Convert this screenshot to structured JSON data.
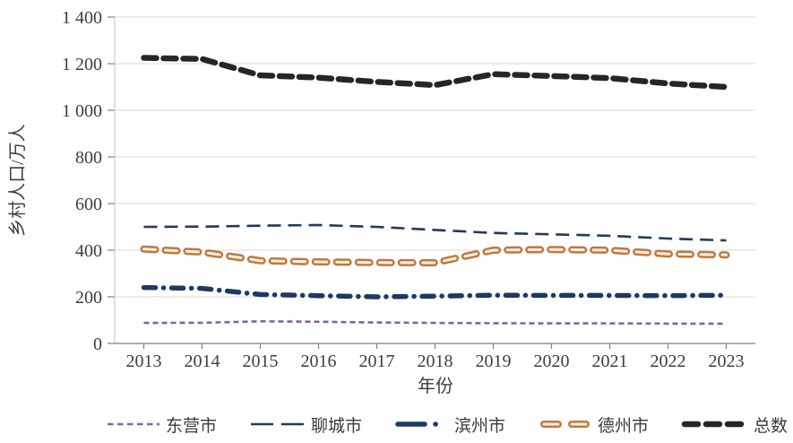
{
  "chart_data": {
    "type": "line",
    "title": "",
    "xlabel": "年份",
    "ylabel": "乡村人口/万人",
    "x_categories": [
      "2013",
      "2014",
      "2015",
      "2016",
      "2017",
      "2018",
      "2019",
      "2020",
      "2021",
      "2022",
      "2023"
    ],
    "y_ticks": [
      "0",
      "200",
      "400",
      "600",
      "800",
      "1 000",
      "1 200",
      "1 400"
    ],
    "ylim": [
      0,
      1400
    ],
    "grid": "horizontal",
    "legend_position": "bottom",
    "series": [
      {
        "id": "dongying",
        "name": "东营市",
        "line_style": "dashed-thin",
        "color": "#8064a2",
        "values": [
          88,
          89,
          95,
          93,
          90,
          88,
          87,
          86,
          86,
          85,
          85
        ]
      },
      {
        "id": "liaocheng",
        "name": "聊城市",
        "line_style": "long-dash-thin",
        "color": "#23395d",
        "values": [
          500,
          501,
          505,
          508,
          500,
          487,
          474,
          468,
          462,
          450,
          442
        ]
      },
      {
        "id": "binzhou",
        "name": "滨州市",
        "line_style": "dash-dot-thick",
        "color": "#1f3864",
        "values": [
          240,
          236,
          210,
          205,
          200,
          203,
          207,
          206,
          206,
          205,
          207
        ]
      },
      {
        "id": "dezhou",
        "name": "德州市",
        "line_style": "outlined-dash-thick",
        "color": "#c0783f",
        "fill_color": "#fcf0e1",
        "values": [
          405,
          392,
          355,
          350,
          347,
          346,
          400,
          403,
          400,
          384,
          380
        ]
      },
      {
        "id": "total",
        "name": "总数",
        "line_style": "dash-thick",
        "color": "#262626",
        "values": [
          1225,
          1220,
          1150,
          1140,
          1122,
          1108,
          1155,
          1147,
          1138,
          1115,
          1100
        ]
      }
    ],
    "colors": {
      "gridline": "#d9d9d9",
      "axis_line": "#7f7f7f",
      "left_axis_line": "#c0c0c0",
      "tick_text": "#3d3d3d"
    }
  }
}
